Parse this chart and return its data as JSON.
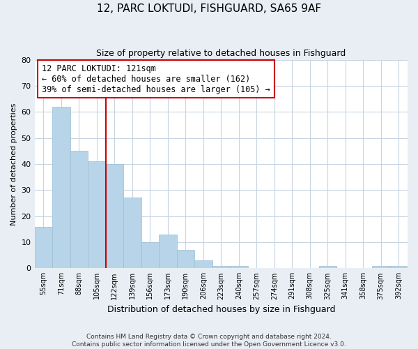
{
  "title": "12, PARC LOKTUDI, FISHGUARD, SA65 9AF",
  "subtitle": "Size of property relative to detached houses in Fishguard",
  "xlabel": "Distribution of detached houses by size in Fishguard",
  "ylabel": "Number of detached properties",
  "bin_labels": [
    "55sqm",
    "71sqm",
    "88sqm",
    "105sqm",
    "122sqm",
    "139sqm",
    "156sqm",
    "173sqm",
    "190sqm",
    "206sqm",
    "223sqm",
    "240sqm",
    "257sqm",
    "274sqm",
    "291sqm",
    "308sqm",
    "325sqm",
    "341sqm",
    "358sqm",
    "375sqm",
    "392sqm"
  ],
  "bar_values": [
    16,
    62,
    45,
    41,
    40,
    27,
    10,
    13,
    7,
    3,
    1,
    1,
    0,
    0,
    0,
    0,
    1,
    0,
    0,
    1,
    1
  ],
  "bar_color": "#b8d4e8",
  "bar_edge_color": "#9bbdd4",
  "vline_x_index": 4,
  "vline_color": "#cc0000",
  "ylim": [
    0,
    80
  ],
  "yticks": [
    0,
    10,
    20,
    30,
    40,
    50,
    60,
    70,
    80
  ],
  "annotation_title": "12 PARC LOKTUDI: 121sqm",
  "annotation_line1": "← 60% of detached houses are smaller (162)",
  "annotation_line2": "39% of semi-detached houses are larger (105) →",
  "footer_line1": "Contains HM Land Registry data © Crown copyright and database right 2024.",
  "footer_line2": "Contains public sector information licensed under the Open Government Licence v3.0.",
  "background_color": "#e8eef4",
  "plot_background_color": "#ffffff",
  "grid_color": "#c8d4e0"
}
